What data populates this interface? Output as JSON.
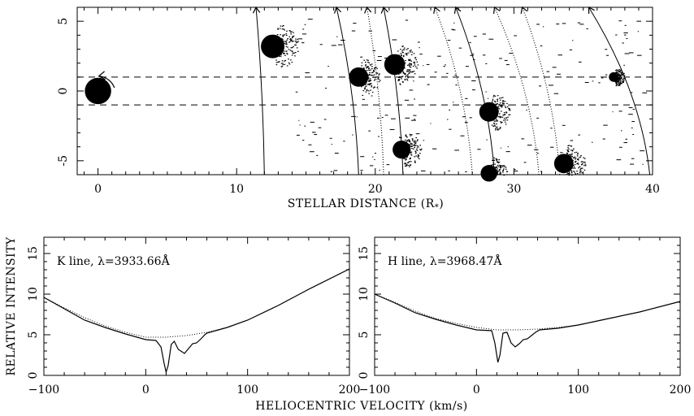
{
  "chart_data": [
    {
      "type": "scatter",
      "xlabel": "STELLAR DISTANCE (R",
      "xlabel_sub": "*",
      "xlabel_close": ")",
      "ylabel": "",
      "xlim": [
        -1.5,
        40
      ],
      "ylim": [
        -6,
        6
      ],
      "x_ticks": [
        0,
        10,
        20,
        30,
        40
      ],
      "y_ticks": [
        -5,
        0,
        5
      ],
      "star": {
        "x": 0,
        "y": 0,
        "r": 0.95
      },
      "dashed_lines_y": [
        1,
        -1
      ],
      "clumps": [
        {
          "x": 12.6,
          "y": 3.2,
          "r": 0.85
        },
        {
          "x": 18.8,
          "y": 1.0,
          "r": 0.7
        },
        {
          "x": 21.4,
          "y": 1.9,
          "r": 0.75
        },
        {
          "x": 21.9,
          "y": -4.2,
          "r": 0.65
        },
        {
          "x": 28.2,
          "y": -1.5,
          "r": 0.7
        },
        {
          "x": 28.2,
          "y": -5.9,
          "r": 0.6
        },
        {
          "x": 33.6,
          "y": -5.2,
          "r": 0.7
        },
        {
          "x": 37.2,
          "y": 1.0,
          "r": 0.35
        }
      ],
      "trajectories_solid": [
        {
          "x_bottom": 12.0,
          "x_top": 11.4
        },
        {
          "x_bottom": 18.8,
          "x_top": 17.2
        },
        {
          "x_bottom": 22.0,
          "x_top": 20.6
        },
        {
          "x_bottom": 28.6,
          "x_top": 25.8
        },
        {
          "x_bottom": 39.8,
          "x_top": 35.4
        }
      ],
      "trajectories_dotted": [
        {
          "x_bottom": 27.0,
          "x_top": 24.3
        },
        {
          "x_bottom": 31.8,
          "x_top": 28.6
        },
        {
          "x_bottom": 33.3,
          "x_top": 30.6
        },
        {
          "x_bottom": 20.6,
          "x_top": 19.4
        }
      ]
    },
    {
      "type": "line",
      "label": "K line, λ=3933.66Å",
      "xlim": [
        -100,
        200
      ],
      "ylim": [
        0,
        17
      ],
      "x_ticks": [
        -100,
        0,
        100,
        200
      ],
      "y_ticks": [
        0,
        5,
        10,
        15
      ],
      "series": [
        {
          "style": "solid",
          "x": [
            -100,
            -80,
            -60,
            -40,
            -20,
            0,
            10,
            15,
            18,
            20,
            22,
            25,
            28,
            32,
            38,
            42,
            46,
            50,
            55,
            58,
            60,
            80,
            100,
            130,
            160,
            200
          ],
          "y": [
            9.6,
            8.2,
            6.8,
            5.9,
            5.1,
            4.4,
            4.3,
            3.5,
            1.5,
            0.4,
            1.2,
            3.8,
            4.2,
            3.2,
            2.7,
            3.3,
            3.9,
            4.0,
            4.6,
            5.0,
            5.2,
            5.9,
            6.8,
            8.6,
            10.6,
            13.1
          ]
        },
        {
          "style": "dotted",
          "x": [
            -100,
            -80,
            -60,
            -40,
            -20,
            0,
            20,
            40,
            60,
            80,
            100,
            130,
            160,
            200
          ],
          "y": [
            9.6,
            8.3,
            7.1,
            6.1,
            5.3,
            4.7,
            4.7,
            4.9,
            5.3,
            5.9,
            6.8,
            8.6,
            10.6,
            13.1
          ]
        }
      ]
    },
    {
      "type": "line",
      "label": "H line, λ=3968.47Å",
      "xlim": [
        -100,
        200
      ],
      "ylim": [
        0,
        17
      ],
      "x_ticks": [
        -100,
        0,
        100,
        200
      ],
      "y_ticks": [
        0,
        5,
        10,
        15
      ],
      "series": [
        {
          "style": "solid",
          "x": [
            -100,
            -80,
            -60,
            -40,
            -20,
            0,
            15,
            18,
            21,
            23,
            26,
            30,
            34,
            38,
            42,
            46,
            50,
            54,
            58,
            62,
            80,
            100,
            130,
            160,
            200
          ],
          "y": [
            10.0,
            8.9,
            7.7,
            6.9,
            6.2,
            5.6,
            5.5,
            4.0,
            1.6,
            2.5,
            5.2,
            5.3,
            4.0,
            3.5,
            3.9,
            4.4,
            4.5,
            4.9,
            5.3,
            5.6,
            5.8,
            6.2,
            7.0,
            7.8,
            9.1
          ]
        },
        {
          "style": "dotted",
          "x": [
            -100,
            -80,
            -60,
            -40,
            -20,
            0,
            20,
            40,
            60,
            80,
            100,
            130,
            160,
            200
          ],
          "y": [
            10.0,
            9.0,
            7.9,
            7.0,
            6.4,
            5.9,
            5.6,
            5.6,
            5.7,
            5.9,
            6.2,
            7.0,
            7.8,
            9.1
          ]
        }
      ]
    }
  ],
  "shared": {
    "ylabel": "RELATIVE INTENSITY",
    "xlabel": "HELIOCENTRIC VELOCITY (km/s)"
  }
}
